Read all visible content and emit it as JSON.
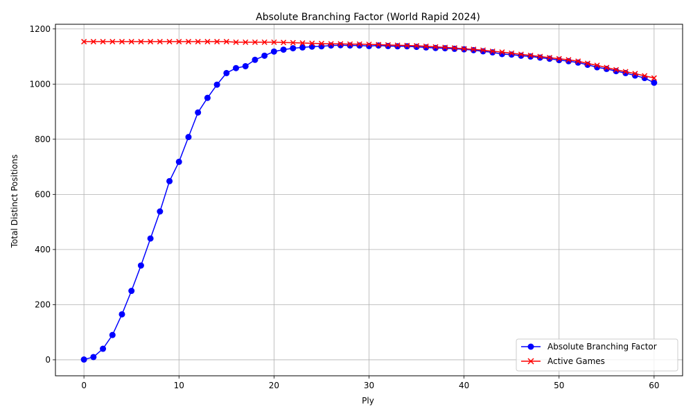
{
  "chart_data": {
    "type": "line",
    "title": "Absolute Branching Factor (World Rapid 2024)",
    "xlabel": "Ply",
    "ylabel": "Total Distinct Positions",
    "xlim": [
      -3,
      63
    ],
    "ylim": [
      -58,
      1217
    ],
    "xticks": [
      0,
      10,
      20,
      30,
      40,
      50,
      60
    ],
    "yticks": [
      0,
      200,
      400,
      600,
      800,
      1000,
      1200
    ],
    "grid": true,
    "legend_position": "lower right",
    "x": [
      0,
      1,
      2,
      3,
      4,
      5,
      6,
      7,
      8,
      9,
      10,
      11,
      12,
      13,
      14,
      15,
      16,
      17,
      18,
      19,
      20,
      21,
      22,
      23,
      24,
      25,
      26,
      27,
      28,
      29,
      30,
      31,
      32,
      33,
      34,
      35,
      36,
      37,
      38,
      39,
      40,
      41,
      42,
      43,
      44,
      45,
      46,
      47,
      48,
      49,
      50,
      51,
      52,
      53,
      54,
      55,
      56,
      57,
      58,
      59,
      60
    ],
    "series": [
      {
        "name": "Absolute Branching Factor",
        "color": "#0000ff",
        "marker": "circle",
        "values": [
          1,
          10,
          40,
          90,
          165,
          250,
          342,
          440,
          538,
          648,
          718,
          808,
          897,
          950,
          998,
          1040,
          1058,
          1065,
          1088,
          1103,
          1118,
          1125,
          1130,
          1133,
          1136,
          1137,
          1140,
          1141,
          1140,
          1140,
          1138,
          1140,
          1138,
          1137,
          1137,
          1135,
          1133,
          1131,
          1130,
          1128,
          1126,
          1123,
          1119,
          1115,
          1109,
          1107,
          1103,
          1100,
          1096,
          1092,
          1087,
          1083,
          1078,
          1070,
          1061,
          1055,
          1047,
          1040,
          1031,
          1022,
          1005
        ]
      },
      {
        "name": "Active Games",
        "color": "#ff0000",
        "marker": "x",
        "values": [
          1154,
          1154,
          1154,
          1154,
          1154,
          1154,
          1154,
          1154,
          1154,
          1154,
          1154,
          1154,
          1154,
          1154,
          1154,
          1154,
          1152,
          1152,
          1152,
          1152,
          1152,
          1151,
          1150,
          1149,
          1148,
          1147,
          1146,
          1146,
          1145,
          1145,
          1144,
          1143,
          1142,
          1141,
          1140,
          1139,
          1137,
          1135,
          1133,
          1131,
          1128,
          1126,
          1123,
          1119,
          1116,
          1112,
          1108,
          1104,
          1100,
          1096,
          1092,
          1088,
          1083,
          1075,
          1068,
          1060,
          1052,
          1045,
          1038,
          1030,
          1022
        ]
      }
    ]
  }
}
